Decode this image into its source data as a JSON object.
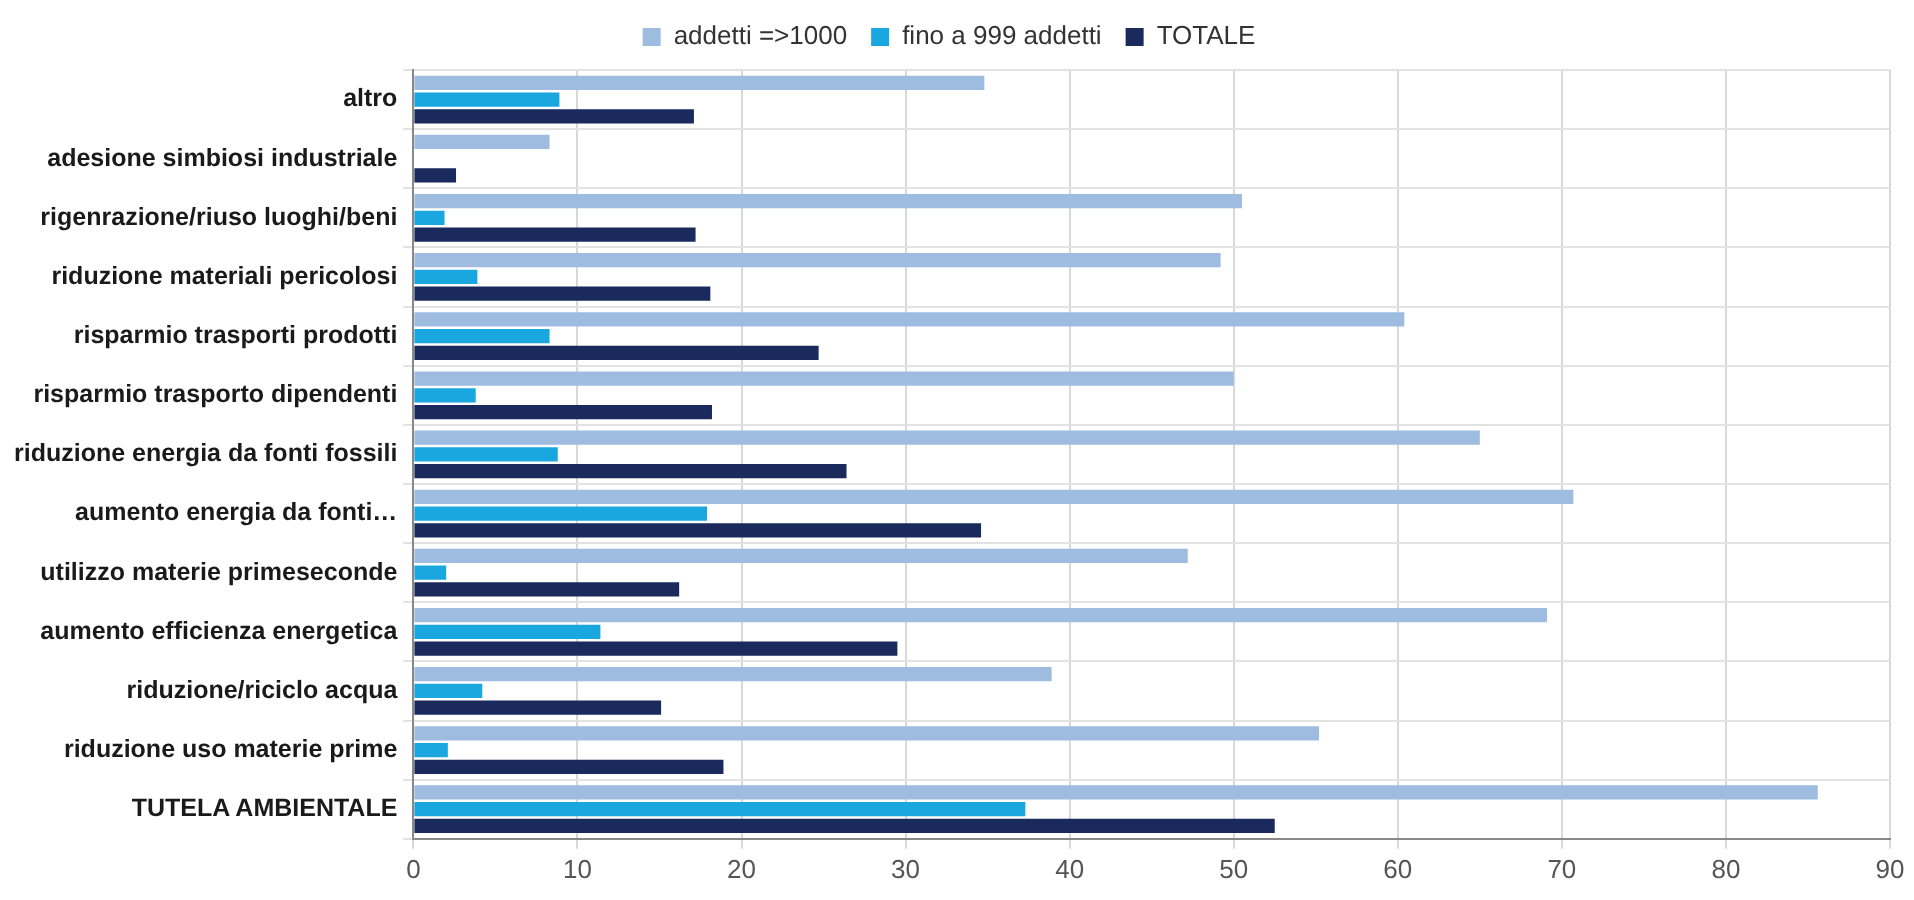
{
  "chart_data": {
    "type": "bar",
    "orientation": "horizontal",
    "categories": [
      "altro",
      "adesione simbiosi industriale",
      "rigenrazione/riuso luoghi/beni",
      "riduzione materiali pericolosi",
      "risparmio trasporti prodotti",
      "risparmio trasporto dipendenti",
      "riduzione energia da fonti fossili",
      "aumento energia da fonti…",
      "utilizzo materie primeseconde",
      "aumento efficienza energetica",
      "riduzione/riciclo acqua",
      "riduzione uso materie prime",
      "TUTELA AMBIENTALE"
    ],
    "series": [
      {
        "name": "addetti =>1000",
        "color": "#9dbce0",
        "values": [
          34.8,
          8.3,
          50.5,
          49.2,
          60.4,
          50.0,
          65.0,
          70.7,
          47.2,
          69.1,
          38.9,
          55.2,
          85.6
        ]
      },
      {
        "name": "fino a 999 addetti",
        "color": "#1aa7e0",
        "values": [
          8.9,
          null,
          1.9,
          3.9,
          8.3,
          3.8,
          8.8,
          17.9,
          2.0,
          11.4,
          4.2,
          2.1,
          37.3
        ]
      },
      {
        "name": "TOTALE",
        "color": "#1b2a5c",
        "values": [
          17.1,
          2.6,
          17.2,
          18.1,
          24.7,
          18.2,
          26.4,
          34.6,
          16.2,
          29.5,
          15.1,
          18.9,
          52.5
        ]
      }
    ],
    "xlim": [
      0,
      90
    ],
    "xticks": [
      0,
      10,
      20,
      30,
      40,
      50,
      60,
      70,
      80,
      90
    ],
    "grid": "x",
    "legend": "top"
  }
}
